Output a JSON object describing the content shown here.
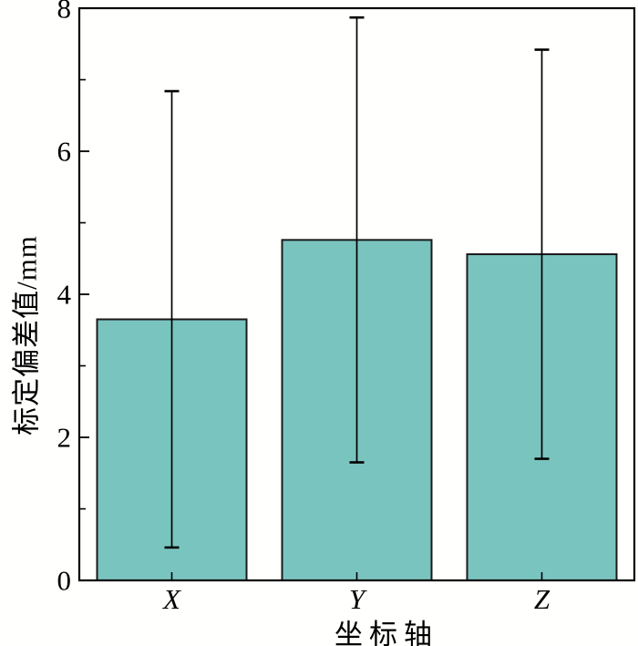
{
  "figure": {
    "background": "#fffffd"
  },
  "chart_data": {
    "type": "bar",
    "title": "",
    "categories": [
      "X",
      "Y",
      "Z"
    ],
    "values": [
      3.65,
      4.76,
      4.56
    ],
    "error_bars": [
      3.19,
      3.11,
      2.86
    ],
    "xlabel": "坐标轴",
    "ylabel": "标定偏差值/mm",
    "ylim": [
      0,
      8
    ],
    "yticks_major": [
      0,
      2,
      4,
      6,
      8
    ],
    "yticks_minor": [
      1,
      3,
      5,
      7
    ],
    "grid": false,
    "bar_fill": "#7ac4c0",
    "bar_edge": "#1a1a1a",
    "axis_color": "#000000"
  }
}
